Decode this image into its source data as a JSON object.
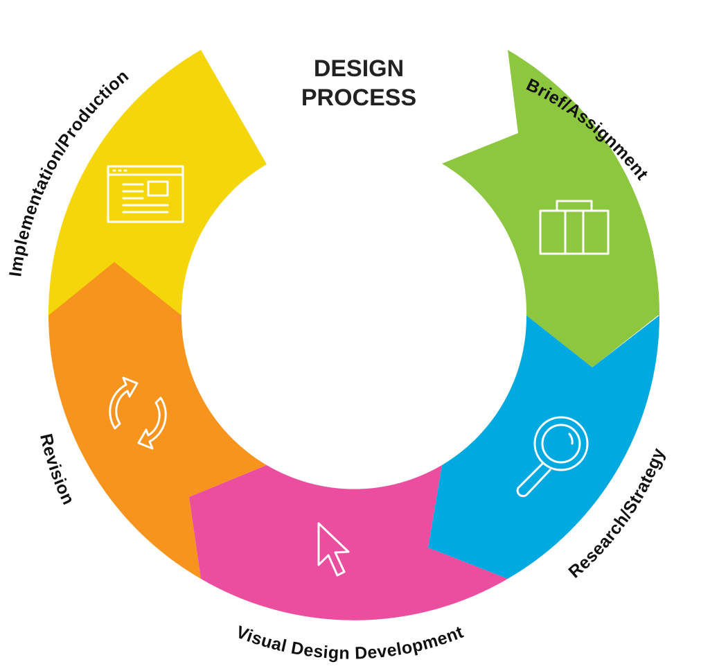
{
  "title": {
    "line1": "DESIGN",
    "line2": "PROCESS"
  },
  "steps": [
    {
      "label": "Brief/Assignment",
      "color": "#8DC63F",
      "icon": "briefcase-icon"
    },
    {
      "label": "Research/Strategy",
      "color": "#00A9E0",
      "icon": "magnifier-icon"
    },
    {
      "label": "Visual Design Development",
      "color": "#EC4E9F",
      "icon": "cursor-icon"
    },
    {
      "label": "Revision",
      "color": "#F7941E",
      "icon": "refresh-icon"
    },
    {
      "label": "Implementation/Production",
      "color": "#F5D60A",
      "icon": "browser-window-icon"
    }
  ]
}
